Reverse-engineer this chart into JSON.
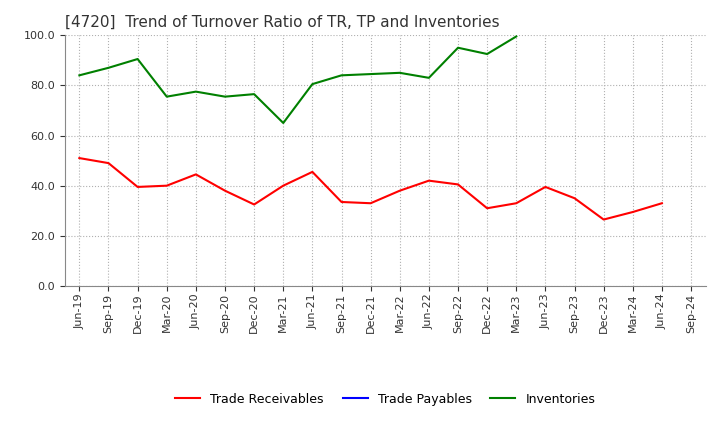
{
  "title": "[4720]  Trend of Turnover Ratio of TR, TP and Inventories",
  "xlabel_dates": [
    "Jun-19",
    "Sep-19",
    "Dec-19",
    "Mar-20",
    "Jun-20",
    "Sep-20",
    "Dec-20",
    "Mar-21",
    "Jun-21",
    "Sep-21",
    "Dec-21",
    "Mar-22",
    "Jun-22",
    "Sep-22",
    "Dec-22",
    "Mar-23",
    "Jun-23",
    "Sep-23",
    "Dec-23",
    "Mar-24",
    "Jun-24",
    "Sep-24"
  ],
  "trade_receivables": [
    51.0,
    49.0,
    39.5,
    40.0,
    44.5,
    38.0,
    32.5,
    40.0,
    45.5,
    33.5,
    33.0,
    38.0,
    42.0,
    40.5,
    31.0,
    33.0,
    39.5,
    35.0,
    26.5,
    29.5,
    33.0,
    null
  ],
  "trade_payables": [
    null,
    null,
    null,
    null,
    null,
    null,
    null,
    null,
    null,
    null,
    null,
    null,
    null,
    null,
    null,
    null,
    null,
    null,
    null,
    null,
    null,
    null
  ],
  "inventories": [
    84.0,
    87.0,
    90.5,
    75.5,
    77.5,
    75.5,
    76.5,
    65.0,
    80.5,
    84.0,
    84.5,
    85.0,
    83.0,
    95.0,
    92.5,
    99.5,
    null,
    null,
    null,
    null,
    null,
    null
  ],
  "ylim": [
    0,
    100
  ],
  "yticks": [
    0.0,
    20.0,
    40.0,
    60.0,
    80.0,
    100.0
  ],
  "tr_color": "#ff0000",
  "tp_color": "#0000ff",
  "inv_color": "#008000",
  "background_color": "#ffffff",
  "grid_color": "#b0b0b0",
  "title_fontsize": 11,
  "tick_fontsize": 8,
  "legend_labels": [
    "Trade Receivables",
    "Trade Payables",
    "Inventories"
  ]
}
